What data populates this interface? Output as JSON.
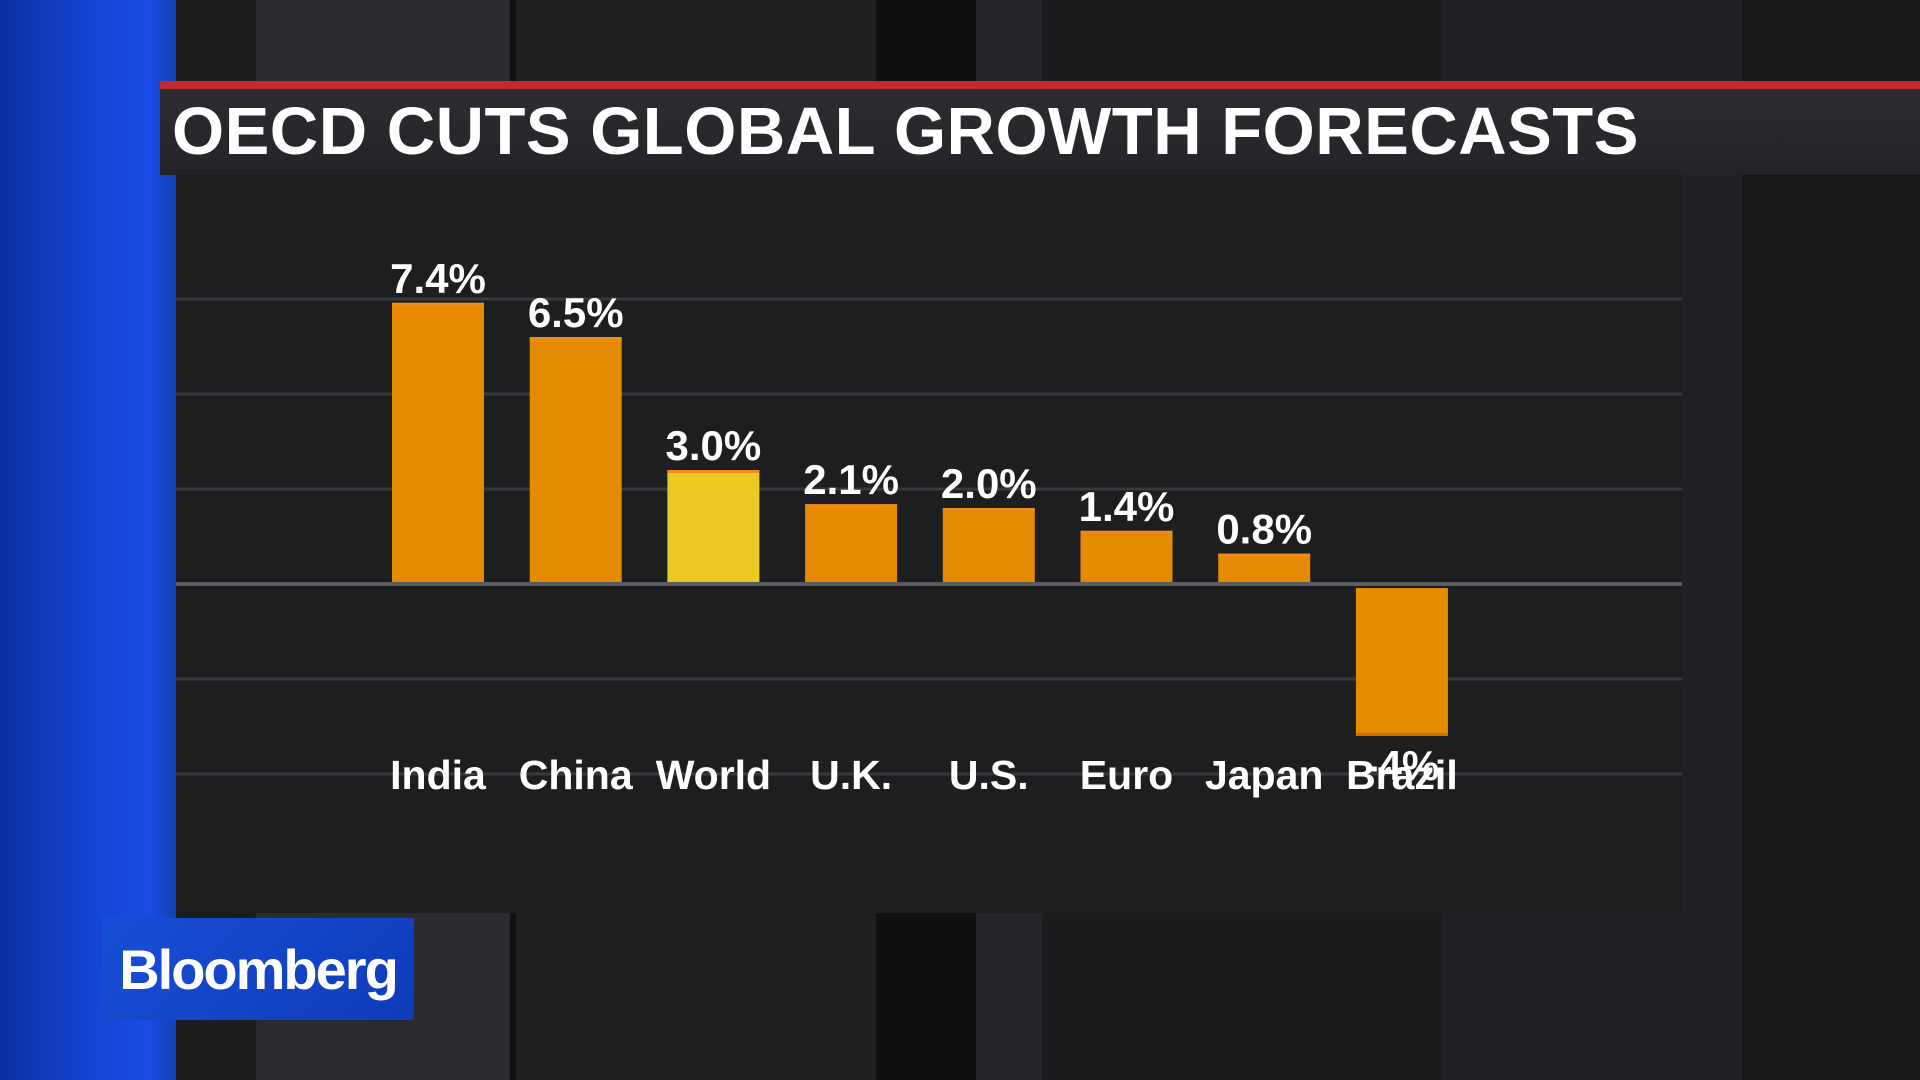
{
  "title": "OECD CUTS GLOBAL GROWTH FORECASTS",
  "brand": {
    "logo_text": "Bloomberg"
  },
  "colors": {
    "bar": "#e68a00",
    "highlight_bar": "#ecc922",
    "accent_line": "#c3292d",
    "brand_blue": "#1546d8"
  },
  "chart_data": {
    "type": "bar",
    "categories": [
      "India",
      "China",
      "World",
      "U.K.",
      "U.S.",
      "Euro",
      "Japan",
      "Brazil"
    ],
    "values": [
      7.4,
      6.5,
      3.0,
      2.1,
      2.0,
      1.4,
      0.8,
      -4
    ],
    "value_labels": [
      "7.4%",
      "6.5%",
      "3.0%",
      "2.1%",
      "2.0%",
      "1.4%",
      "0.8%",
      "-4%"
    ],
    "highlight_category": "World",
    "ylim": [
      -5,
      10
    ],
    "grid": true,
    "xlabel": "",
    "ylabel": ""
  }
}
